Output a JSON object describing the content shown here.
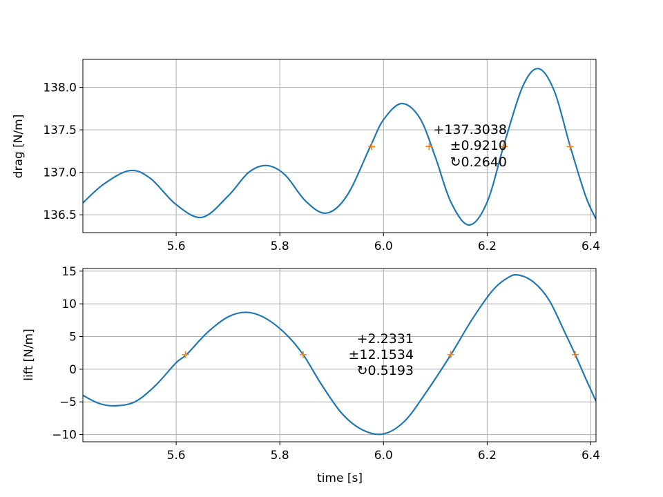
{
  "chart_data": [
    {
      "type": "line",
      "ylabel": "drag [N/m]",
      "xlabel": "",
      "xlim": [
        5.42,
        6.41
      ],
      "ylim": [
        136.29,
        138.33
      ],
      "xticks": [
        5.6,
        5.8,
        6.0,
        6.2,
        6.4
      ],
      "xtick_labels": [
        "5.6",
        "5.8",
        "6.0",
        "6.2",
        "6.4"
      ],
      "yticks": [
        136.5,
        137.0,
        137.5,
        138.0
      ],
      "ytick_labels": [
        "136.5",
        "137.0",
        "137.5",
        "138.0"
      ],
      "grid": true,
      "line_color": "#1f77b4",
      "marker_color": "#ff7f0e",
      "series": [
        {
          "x": [
            5.42,
            5.46,
            5.51,
            5.55,
            5.6,
            5.65,
            5.7,
            5.74,
            5.775,
            5.81,
            5.85,
            5.89,
            5.93,
            5.975,
            6.0,
            6.035,
            6.07,
            6.1,
            6.13,
            6.165,
            6.2,
            6.235,
            6.27,
            6.3,
            6.33,
            6.36,
            6.39,
            6.41
          ],
          "values": [
            136.64,
            136.86,
            137.02,
            136.93,
            136.62,
            136.47,
            136.72,
            137.0,
            137.08,
            136.97,
            136.66,
            136.52,
            136.73,
            137.31,
            137.62,
            137.81,
            137.64,
            137.18,
            136.65,
            136.38,
            136.65,
            137.38,
            138.03,
            138.22,
            137.95,
            137.31,
            136.72,
            136.45
          ]
        }
      ],
      "crossing_markers": {
        "x": [
          5.977,
          6.088,
          6.233,
          6.36
        ],
        "y": 137.3038
      },
      "annotation": [
        "+137.3038",
        "±0.9210",
        "↻0.2640"
      ]
    },
    {
      "type": "line",
      "ylabel": "lift [N/m]",
      "xlabel": "time [s]",
      "xlim": [
        5.42,
        6.41
      ],
      "ylim": [
        -11.1,
        15.4
      ],
      "xticks": [
        5.6,
        5.8,
        6.0,
        6.2,
        6.4
      ],
      "xtick_labels": [
        "5.6",
        "5.8",
        "6.0",
        "6.2",
        "6.4"
      ],
      "yticks": [
        -10,
        -5,
        0,
        5,
        10,
        15
      ],
      "ytick_labels": [
        "−10",
        "−5",
        "0",
        "5",
        "10",
        "15"
      ],
      "grid": true,
      "line_color": "#1f77b4",
      "marker_color": "#ff7f0e",
      "series": [
        {
          "x": [
            5.42,
            5.45,
            5.48,
            5.52,
            5.56,
            5.6,
            5.62,
            5.66,
            5.7,
            5.735,
            5.77,
            5.81,
            5.845,
            5.88,
            5.92,
            5.96,
            6.0,
            6.04,
            6.08,
            6.13,
            6.17,
            6.21,
            6.24,
            6.26,
            6.29,
            6.32,
            6.35,
            6.37,
            6.39,
            6.41
          ],
          "values": [
            -4.0,
            -5.2,
            -5.6,
            -5.0,
            -2.5,
            1.0,
            2.23,
            5.6,
            8.0,
            8.7,
            7.9,
            5.5,
            2.23,
            -2.3,
            -6.8,
            -9.3,
            -9.9,
            -8.0,
            -3.8,
            2.23,
            7.5,
            12.0,
            14.0,
            14.4,
            13.3,
            10.5,
            5.6,
            2.23,
            -1.4,
            -4.9
          ]
        }
      ],
      "crossing_markers": {
        "x": [
          5.618,
          5.845,
          6.13,
          6.37
        ],
        "y": 2.2331
      },
      "annotation": [
        "+2.2331",
        "±12.1534",
        "↻0.5193"
      ]
    }
  ]
}
